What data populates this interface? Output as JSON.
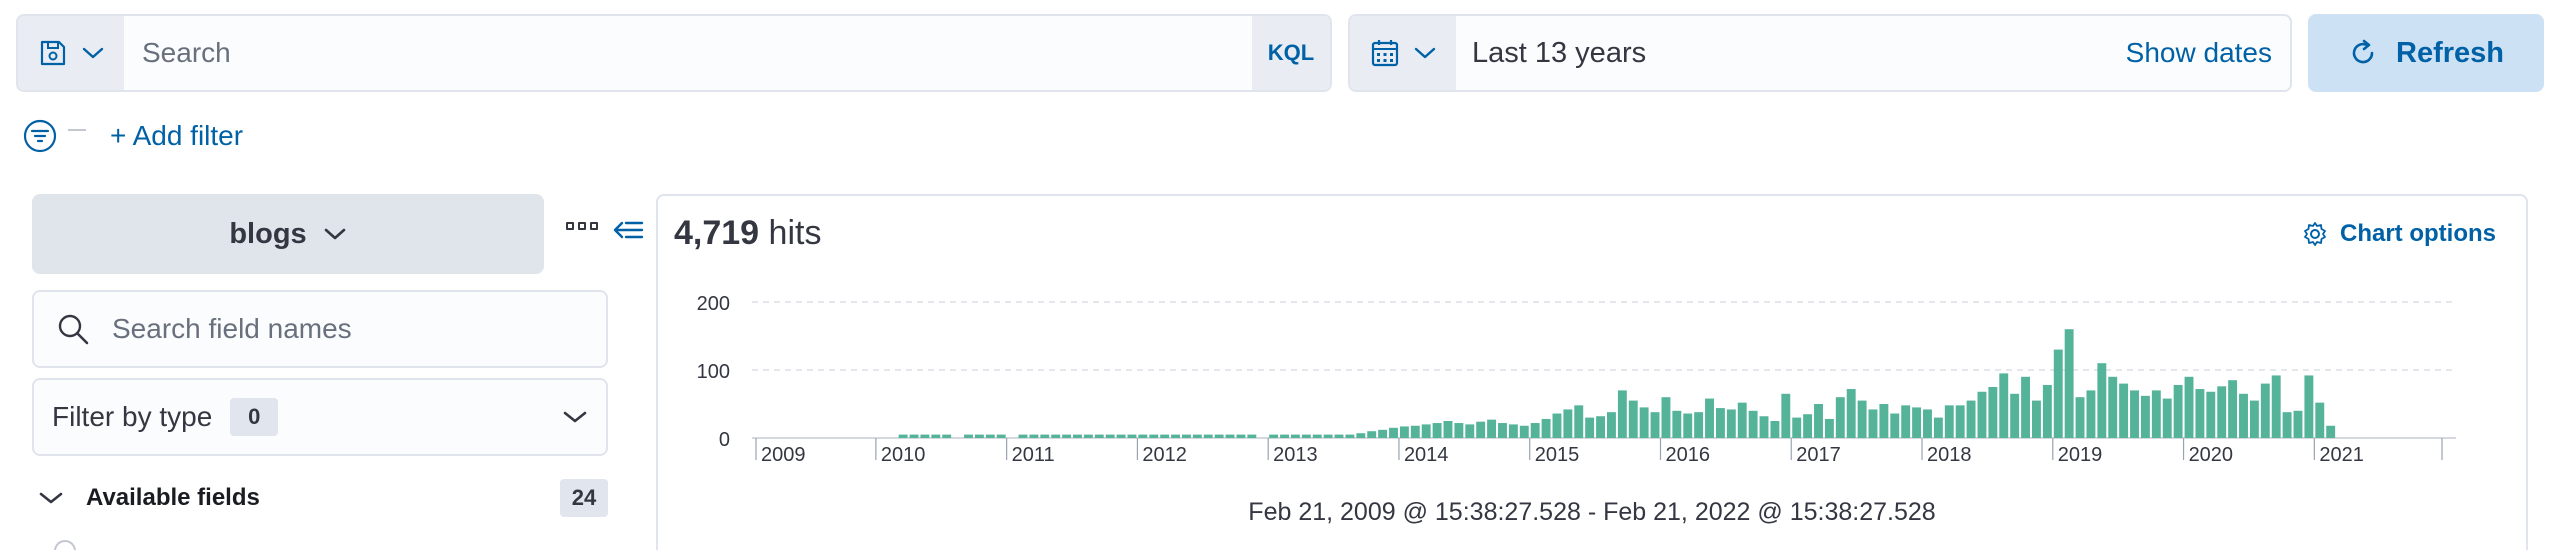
{
  "query_bar": {
    "search_placeholder": "Search",
    "kql_label": "KQL"
  },
  "time_bar": {
    "range_label": "Last 13 years",
    "show_dates_label": "Show dates",
    "refresh_label": "Refresh"
  },
  "filter_bar": {
    "add_filter_label": "+ Add filter"
  },
  "sidebar": {
    "index_pattern": "blogs",
    "field_search_placeholder": "Search field names",
    "filter_by_type_label": "Filter by type",
    "filter_by_type_count": "0",
    "available_fields_label": "Available fields",
    "available_fields_count": "24"
  },
  "chart_header": {
    "hits_count": "4,719",
    "hits_label": "hits",
    "chart_options_label": "Chart options"
  },
  "colors": {
    "accent": "#0061a6",
    "bar": "#54b399"
  },
  "chart_data": {
    "type": "bar",
    "ylim": [
      0,
      200
    ],
    "y_ticks": [
      "0",
      "100",
      "200"
    ],
    "x_tick_labels": [
      "2009",
      "2010",
      "2011",
      "2012",
      "2013",
      "2014",
      "2015",
      "2016",
      "2017",
      "2018",
      "2019",
      "2020",
      "2021"
    ],
    "x_range": [
      "2009-02",
      "2022-02"
    ],
    "grid": true,
    "date_range_label": "Feb 21, 2009 @ 15:38:27.528 - Feb 21, 2022 @ 15:38:27.528",
    "bars": [
      {
        "month": "2010-03",
        "value": 5
      },
      {
        "month": "2010-04",
        "value": 5
      },
      {
        "month": "2010-05",
        "value": 5
      },
      {
        "month": "2010-06",
        "value": 5
      },
      {
        "month": "2010-07",
        "value": 5
      },
      {
        "month": "2010-09",
        "value": 5
      },
      {
        "month": "2010-10",
        "value": 5
      },
      {
        "month": "2010-11",
        "value": 5
      },
      {
        "month": "2010-12",
        "value": 5
      },
      {
        "month": "2011-02",
        "value": 5
      },
      {
        "month": "2011-03",
        "value": 5
      },
      {
        "month": "2011-04",
        "value": 5
      },
      {
        "month": "2011-05",
        "value": 5
      },
      {
        "month": "2011-06",
        "value": 5
      },
      {
        "month": "2011-07",
        "value": 5
      },
      {
        "month": "2011-08",
        "value": 5
      },
      {
        "month": "2011-09",
        "value": 5
      },
      {
        "month": "2011-10",
        "value": 5
      },
      {
        "month": "2011-11",
        "value": 5
      },
      {
        "month": "2011-12",
        "value": 5
      },
      {
        "month": "2012-01",
        "value": 5
      },
      {
        "month": "2012-02",
        "value": 5
      },
      {
        "month": "2012-03",
        "value": 5
      },
      {
        "month": "2012-04",
        "value": 5
      },
      {
        "month": "2012-05",
        "value": 5
      },
      {
        "month": "2012-06",
        "value": 5
      },
      {
        "month": "2012-07",
        "value": 5
      },
      {
        "month": "2012-08",
        "value": 5
      },
      {
        "month": "2012-09",
        "value": 5
      },
      {
        "month": "2012-10",
        "value": 5
      },
      {
        "month": "2012-11",
        "value": 5
      },
      {
        "month": "2013-01",
        "value": 5
      },
      {
        "month": "2013-02",
        "value": 5
      },
      {
        "month": "2013-03",
        "value": 5
      },
      {
        "month": "2013-04",
        "value": 5
      },
      {
        "month": "2013-05",
        "value": 5
      },
      {
        "month": "2013-06",
        "value": 5
      },
      {
        "month": "2013-07",
        "value": 5
      },
      {
        "month": "2013-08",
        "value": 5
      },
      {
        "month": "2013-09",
        "value": 7
      },
      {
        "month": "2013-10",
        "value": 10
      },
      {
        "month": "2013-11",
        "value": 12
      },
      {
        "month": "2013-12",
        "value": 15
      },
      {
        "month": "2014-01",
        "value": 17
      },
      {
        "month": "2014-02",
        "value": 18
      },
      {
        "month": "2014-03",
        "value": 20
      },
      {
        "month": "2014-04",
        "value": 22
      },
      {
        "month": "2014-05",
        "value": 25
      },
      {
        "month": "2014-06",
        "value": 22
      },
      {
        "month": "2014-07",
        "value": 20
      },
      {
        "month": "2014-08",
        "value": 24
      },
      {
        "month": "2014-09",
        "value": 27
      },
      {
        "month": "2014-10",
        "value": 22
      },
      {
        "month": "2014-11",
        "value": 20
      },
      {
        "month": "2014-12",
        "value": 18
      },
      {
        "month": "2015-01",
        "value": 22
      },
      {
        "month": "2015-02",
        "value": 28
      },
      {
        "month": "2015-03",
        "value": 36
      },
      {
        "month": "2015-04",
        "value": 42
      },
      {
        "month": "2015-05",
        "value": 48
      },
      {
        "month": "2015-06",
        "value": 30
      },
      {
        "month": "2015-07",
        "value": 32
      },
      {
        "month": "2015-08",
        "value": 38
      },
      {
        "month": "2015-09",
        "value": 70
      },
      {
        "month": "2015-10",
        "value": 55
      },
      {
        "month": "2015-11",
        "value": 45
      },
      {
        "month": "2015-12",
        "value": 38
      },
      {
        "month": "2016-01",
        "value": 60
      },
      {
        "month": "2016-02",
        "value": 40
      },
      {
        "month": "2016-03",
        "value": 36
      },
      {
        "month": "2016-04",
        "value": 38
      },
      {
        "month": "2016-05",
        "value": 58
      },
      {
        "month": "2016-06",
        "value": 44
      },
      {
        "month": "2016-07",
        "value": 42
      },
      {
        "month": "2016-08",
        "value": 52
      },
      {
        "month": "2016-09",
        "value": 40
      },
      {
        "month": "2016-10",
        "value": 32
      },
      {
        "month": "2016-11",
        "value": 25
      },
      {
        "month": "2016-12",
        "value": 65
      },
      {
        "month": "2017-01",
        "value": 30
      },
      {
        "month": "2017-02",
        "value": 35
      },
      {
        "month": "2017-03",
        "value": 50
      },
      {
        "month": "2017-04",
        "value": 28
      },
      {
        "month": "2017-05",
        "value": 60
      },
      {
        "month": "2017-06",
        "value": 72
      },
      {
        "month": "2017-07",
        "value": 55
      },
      {
        "month": "2017-08",
        "value": 42
      },
      {
        "month": "2017-09",
        "value": 50
      },
      {
        "month": "2017-10",
        "value": 36
      },
      {
        "month": "2017-11",
        "value": 48
      },
      {
        "month": "2017-12",
        "value": 45
      },
      {
        "month": "2018-01",
        "value": 42
      },
      {
        "month": "2018-02",
        "value": 30
      },
      {
        "month": "2018-03",
        "value": 48
      },
      {
        "month": "2018-04",
        "value": 48
      },
      {
        "month": "2018-05",
        "value": 55
      },
      {
        "month": "2018-06",
        "value": 68
      },
      {
        "month": "2018-07",
        "value": 75
      },
      {
        "month": "2018-08",
        "value": 95
      },
      {
        "month": "2018-09",
        "value": 65
      },
      {
        "month": "2018-10",
        "value": 90
      },
      {
        "month": "2018-11",
        "value": 55
      },
      {
        "month": "2018-12",
        "value": 78
      },
      {
        "month": "2019-01",
        "value": 130
      },
      {
        "month": "2019-02",
        "value": 160
      },
      {
        "month": "2019-03",
        "value": 60
      },
      {
        "month": "2019-04",
        "value": 70
      },
      {
        "month": "2019-05",
        "value": 110
      },
      {
        "month": "2019-06",
        "value": 90
      },
      {
        "month": "2019-07",
        "value": 80
      },
      {
        "month": "2019-08",
        "value": 70
      },
      {
        "month": "2019-09",
        "value": 62
      },
      {
        "month": "2019-10",
        "value": 70
      },
      {
        "month": "2019-11",
        "value": 58
      },
      {
        "month": "2019-12",
        "value": 78
      },
      {
        "month": "2020-01",
        "value": 90
      },
      {
        "month": "2020-02",
        "value": 72
      },
      {
        "month": "2020-03",
        "value": 68
      },
      {
        "month": "2020-04",
        "value": 76
      },
      {
        "month": "2020-05",
        "value": 85
      },
      {
        "month": "2020-06",
        "value": 65
      },
      {
        "month": "2020-07",
        "value": 55
      },
      {
        "month": "2020-08",
        "value": 80
      },
      {
        "month": "2020-09",
        "value": 92
      },
      {
        "month": "2020-10",
        "value": 38
      },
      {
        "month": "2020-11",
        "value": 40
      },
      {
        "month": "2020-12",
        "value": 92
      },
      {
        "month": "2021-01",
        "value": 52
      },
      {
        "month": "2021-02",
        "value": 18
      }
    ]
  }
}
